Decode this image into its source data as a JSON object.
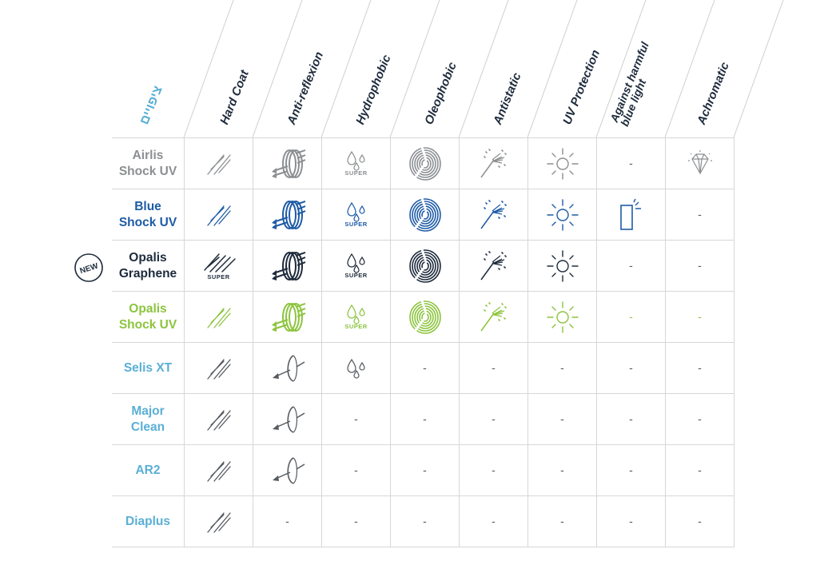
{
  "headers": [
    {
      "key": "hebrew",
      "text": "ציפויים"
    },
    {
      "key": "hard",
      "text": "Hard Coat"
    },
    {
      "key": "ar",
      "text": "Anti-reflexion"
    },
    {
      "key": "hydro",
      "text": "Hydrophobic"
    },
    {
      "key": "oleo",
      "text": "Oleophobic"
    },
    {
      "key": "antistatic",
      "text": "Antistatic"
    },
    {
      "key": "uv",
      "text": "UV Protection"
    },
    {
      "key": "blue",
      "line1": "Against harmful",
      "line2": "blue light"
    },
    {
      "key": "achro",
      "text": "Achromatic"
    }
  ],
  "badge": "NEW",
  "super_label": "SUPER",
  "dash": "-",
  "colors": {
    "gray": "#8c8f92",
    "blue": "#1e5ba6",
    "dark": "#1e2b3c",
    "green": "#8cc43e",
    "light_blue": "#5aafd6",
    "icon_gray": "#555a5f"
  },
  "rows": [
    {
      "name1": "Airlis",
      "name2": "Shock UV",
      "color": "gray",
      "cells": [
        "hard",
        "ar",
        "hydro-super",
        "fingerprint",
        "broom",
        "sun",
        "dash",
        "diamond"
      ]
    },
    {
      "name1": "Blue",
      "name2": "Shock UV",
      "color": "blue",
      "cells": [
        "hard",
        "ar",
        "hydro-super",
        "fingerprint",
        "broom",
        "sun",
        "phone",
        "dash"
      ]
    },
    {
      "name1": "Opalis",
      "name2": "Graphene",
      "color": "dark",
      "cells": [
        "hard-super",
        "ar",
        "hydro-super",
        "fingerprint",
        "broom",
        "sun",
        "dash",
        "dash"
      ]
    },
    {
      "name1": "Opalis",
      "name2": "Shock UV",
      "color": "green",
      "cells": [
        "hard",
        "ar",
        "hydro-super",
        "fingerprint",
        "broom",
        "sun",
        "dash",
        "dash"
      ]
    },
    {
      "name1": "Selis XT",
      "name2": "",
      "color": "light_blue",
      "cells": [
        "hard",
        "ar-single",
        "hydro",
        "dash",
        "dash",
        "dash",
        "dash",
        "dash"
      ]
    },
    {
      "name1": "Major",
      "name2": "Clean",
      "color": "light_blue",
      "cells": [
        "hard",
        "ar-single",
        "dash",
        "dash",
        "dash",
        "dash",
        "dash",
        "dash"
      ]
    },
    {
      "name1": "AR2",
      "name2": "",
      "color": "light_blue",
      "cells": [
        "hard",
        "ar-single",
        "dash",
        "dash",
        "dash",
        "dash",
        "dash",
        "dash"
      ]
    },
    {
      "name1": "Diaplus",
      "name2": "",
      "color": "light_blue",
      "cells": [
        "hard",
        "dash",
        "dash",
        "dash",
        "dash",
        "dash",
        "dash",
        "dash"
      ]
    }
  ]
}
